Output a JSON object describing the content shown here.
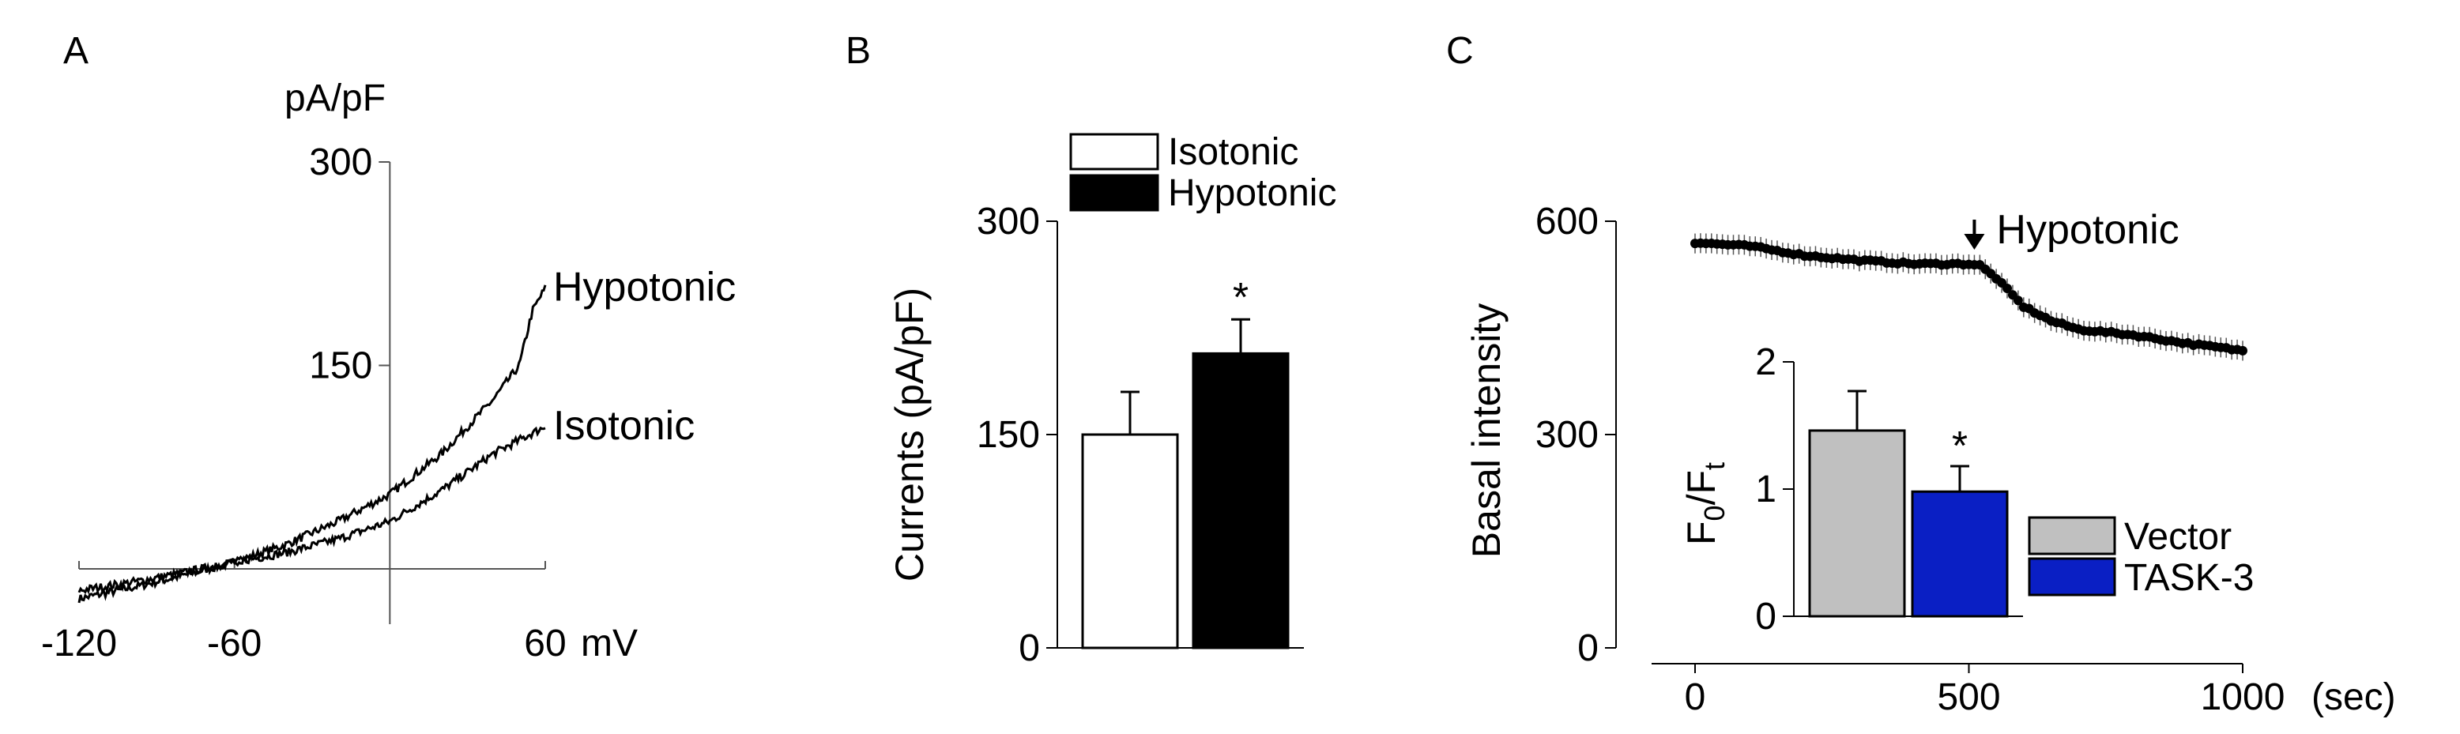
{
  "panels": {
    "a": {
      "label": "A"
    },
    "b": {
      "label": "B"
    },
    "c": {
      "label": "C"
    }
  },
  "chart_data": [
    {
      "panel": "A",
      "type": "line",
      "ylabel": "pA/pF",
      "xlabel": "mV",
      "xlim": [
        -120,
        60
      ],
      "ylim": [
        -25,
        300
      ],
      "x_ticks": [
        -120,
        -60,
        60
      ],
      "x_tick_labels": [
        "-120",
        "-60",
        "60"
      ],
      "y_ticks": [
        150,
        300
      ],
      "series": [
        {
          "name": "Hypotonic",
          "x": [
            -120,
            -100,
            -80,
            -60,
            -40,
            -20,
            0,
            20,
            40,
            50,
            55,
            60
          ],
          "y": [
            -22,
            -14,
            -5,
            5,
            18,
            35,
            55,
            85,
            125,
            150,
            190,
            207
          ]
        },
        {
          "name": "Isotonic",
          "x": [
            -120,
            -100,
            -80,
            -60,
            -40,
            -20,
            0,
            20,
            40,
            55,
            60
          ],
          "y": [
            -16,
            -10,
            -3,
            5,
            12,
            22,
            35,
            58,
            85,
            100,
            105
          ]
        }
      ]
    },
    {
      "panel": "B",
      "type": "bar",
      "ylabel": "Currents (pA/pF)",
      "categories": [
        "Isotonic",
        "Hypotonic"
      ],
      "values": [
        150,
        207
      ],
      "errors": [
        30,
        24
      ],
      "colors": [
        "#ffffff",
        "#000000"
      ],
      "significance": [
        "",
        "*"
      ],
      "ylim": [
        0,
        300
      ],
      "y_ticks": [
        0,
        150,
        300
      ],
      "legend": [
        "Isotonic",
        "Hypotonic"
      ],
      "legend_position": "top"
    },
    {
      "panel": "C",
      "type": "line",
      "ylabel": "Basal intensity",
      "xlabel": "(sec)",
      "xlim": [
        0,
        1000
      ],
      "ylim": [
        0,
        600
      ],
      "x_ticks": [
        0,
        500,
        1000
      ],
      "y_ticks": [
        0,
        300,
        600
      ],
      "annotation": {
        "text": "Hypotonic",
        "x": 510
      },
      "series": [
        {
          "name": "",
          "x": [
            0,
            100,
            200,
            300,
            400,
            500,
            520,
            550,
            600,
            650,
            700,
            800,
            900,
            1000
          ],
          "y": [
            570,
            565,
            552,
            545,
            540,
            540,
            538,
            520,
            480,
            460,
            448,
            440,
            428,
            418
          ],
          "error": 14
        }
      ],
      "inset": {
        "type": "bar",
        "ylabel_main": "F",
        "ylabel_sub0": "0",
        "ylabel_slash": "/F",
        "ylabel_sub1": "t",
        "categories": [
          "Vector",
          "TASK-3"
        ],
        "values": [
          1.46,
          0.98
        ],
        "errors": [
          0.31,
          0.2
        ],
        "colors": [
          "#c0c0c0",
          "#0a1fc4"
        ],
        "significance": [
          "",
          "*"
        ],
        "ylim": [
          0,
          2
        ],
        "y_ticks": [
          0,
          1,
          2
        ],
        "legend": [
          "Vector",
          "TASK-3"
        ],
        "legend_position": "right"
      }
    }
  ]
}
